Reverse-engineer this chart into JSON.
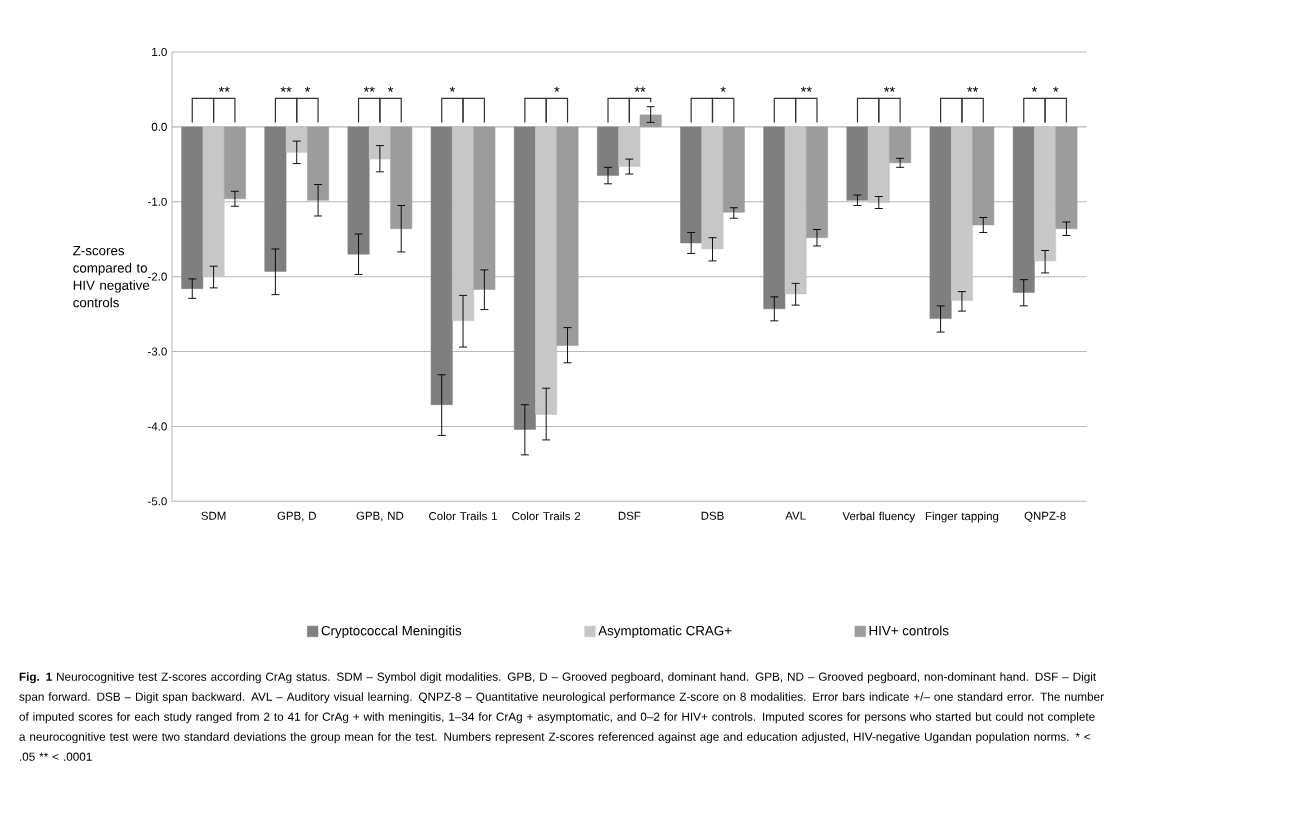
{
  "chart_data": {
    "type": "bar",
    "ylabel": "Z-scores compared to HIV negative controls",
    "categories": [
      "SDM",
      "GPB, D",
      "GPB, ND",
      "Color Trails 1",
      "Color Trails 2",
      "DSF",
      "DSB",
      "AVL",
      "Verbal fluency",
      "Finger tapping",
      "QNPZ-8"
    ],
    "series": [
      {
        "name": "Cryptococcal Meningitis",
        "color": "#7f7f7f",
        "values": [
          -2.16,
          -1.93,
          -1.7,
          -3.71,
          -4.04,
          -0.65,
          -1.55,
          -2.43,
          -0.98,
          -2.56,
          -2.21
        ],
        "errors": [
          [
            -2.29,
            -2.03
          ],
          [
            -2.24,
            -1.63
          ],
          [
            -1.97,
            -1.43
          ],
          [
            -4.12,
            -3.31
          ],
          [
            -4.38,
            -3.71
          ],
          [
            -0.76,
            -0.54
          ],
          [
            -1.69,
            -1.41
          ],
          [
            -2.59,
            -2.27
          ],
          [
            -1.05,
            -0.91
          ],
          [
            -2.74,
            -2.39
          ],
          [
            -2.39,
            -2.04
          ]
        ]
      },
      {
        "name": "Asymptomatic CRAG+",
        "color": "#c6c7c6",
        "values": [
          -2.0,
          -0.34,
          -0.43,
          -2.59,
          -3.84,
          -0.53,
          -1.63,
          -2.23,
          -1.01,
          -2.32,
          -1.79
        ],
        "errors": [
          [
            -2.15,
            -1.86
          ],
          [
            -0.49,
            -0.19
          ],
          [
            -0.6,
            -0.25
          ],
          [
            -2.94,
            -2.25
          ],
          [
            -4.18,
            -3.49
          ],
          [
            -0.63,
            -0.43
          ],
          [
            -1.79,
            -1.48
          ],
          [
            -2.38,
            -2.09
          ],
          [
            -1.09,
            -0.93
          ],
          [
            -2.46,
            -2.2
          ],
          [
            -1.95,
            -1.65
          ]
        ]
      },
      {
        "name": "HIV+ controls",
        "color": "#9b9c9b",
        "values": [
          -0.96,
          -0.98,
          -1.36,
          -2.17,
          -2.92,
          0.16,
          -1.14,
          -1.48,
          -0.48,
          -1.31,
          -1.36
        ],
        "errors": [
          [
            -1.06,
            -0.86
          ],
          [
            -1.19,
            -0.77
          ],
          [
            -1.67,
            -1.05
          ],
          [
            -2.44,
            -1.91
          ],
          [
            -3.15,
            -2.68
          ],
          [
            0.06,
            0.27
          ],
          [
            -1.22,
            -1.08
          ],
          [
            -1.59,
            -1.37
          ],
          [
            -0.54,
            -0.42
          ],
          [
            -1.41,
            -1.21
          ],
          [
            -1.45,
            -1.27
          ]
        ]
      }
    ],
    "ylim": [
      -5,
      1
    ],
    "yticks": [
      {
        "value": -5,
        "label": "-5.0"
      },
      {
        "value": -4,
        "label": "-4.0"
      },
      {
        "value": -3,
        "label": "-3.0"
      },
      {
        "value": -2,
        "label": "-2.0"
      },
      {
        "value": -1,
        "label": "-1.0"
      },
      {
        "value": 0,
        "label": "0.0"
      },
      {
        "value": 1,
        "label": "1.0"
      }
    ],
    "grid": "y",
    "legend": "bottom",
    "annotations": [
      "**",
      "**",
      "*",
      "**",
      "*",
      "*",
      "*",
      "**",
      "*",
      "**",
      "**",
      "**",
      "*",
      "*",
      "**Fig. 1** Neurocognitive test Z-scores according CrAg status. SDM – Symbol digit modalities. GPB, D – Grooved pegboard, dominant hand. GPB, ND – Grooved pegboard, non-dominant hand. DSF – Digit span forward. DSB – Digit span backward. AVL – Auditory visual learning. QNPZ-8 – Quantitative neurological performance Z-score on 8 modalities. Error bars indicate +/– one standard error. The number of imputed scores for each study ranged from 2 to 41 for CrAg + with meningitis, 1–34 for CrAg + asymptomatic, and 0–2 for HIV+ controls. Imputed scores for persons who started but could not complete a neurocognitive test were two standard deviations the group mean for the test. Numbers represent Z-scores referenced against age and education adjusted, HIV-negative Ugandan population norms. * < .05 ** < .0001"
    ]
  }
}
